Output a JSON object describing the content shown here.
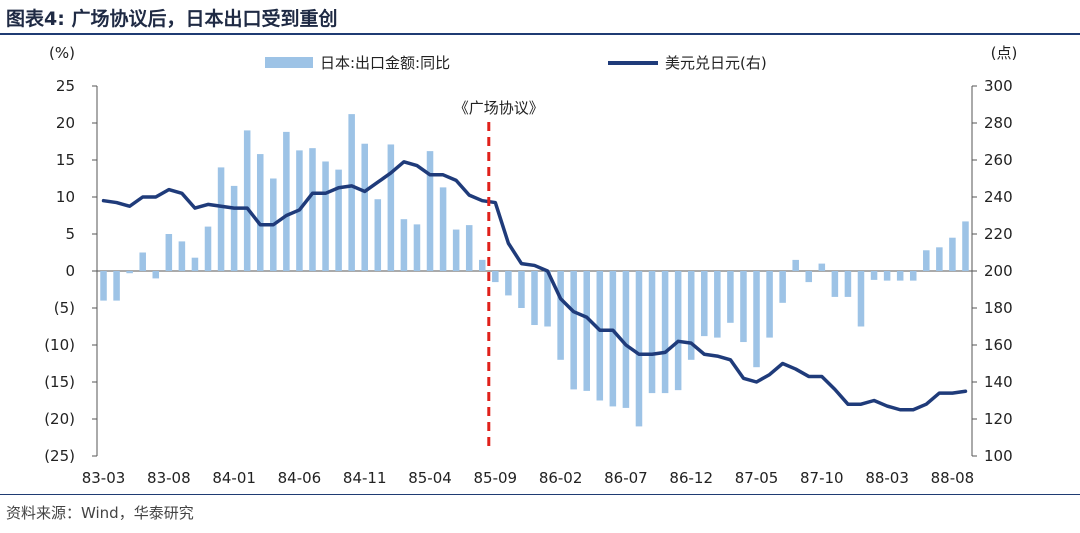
{
  "figure": {
    "label": "图表4:",
    "title": "广场协议后，日本出口受到重创",
    "source": "资料来源：Wind，华泰研究"
  },
  "chart_data": {
    "type": "bar+line",
    "left_unit": "(%)",
    "right_unit": "(点)",
    "left_axis": {
      "min": -25,
      "max": 25,
      "ticks": [
        25,
        20,
        15,
        10,
        5,
        0,
        -5,
        -10,
        -15,
        -20,
        -25
      ],
      "tick_labels": [
        "25",
        "20",
        "15",
        "10",
        "5",
        "0",
        "(5)",
        "(10)",
        "(15)",
        "(20)",
        "(25)"
      ]
    },
    "right_axis": {
      "min": 100,
      "max": 300,
      "ticks": [
        300,
        280,
        260,
        240,
        220,
        200,
        180,
        160,
        140,
        120,
        100
      ],
      "tick_labels": [
        "300",
        "280",
        "260",
        "240",
        "220",
        "200",
        "180",
        "160",
        "140",
        "120",
        "100"
      ]
    },
    "x_tick_labels": [
      "83-03",
      "83-08",
      "84-01",
      "84-06",
      "84-11",
      "85-04",
      "85-09",
      "86-02",
      "86-07",
      "86-12",
      "87-05",
      "87-10",
      "88-03",
      "88-08"
    ],
    "x_tick_start_index": 0,
    "x_tick_step": 5,
    "annotation": {
      "text": "《广场协议》",
      "at_index": 30
    },
    "grid": false,
    "legend_position": "top",
    "colors": {
      "bar": "#9dc3e6",
      "line": "#1f3b7a",
      "marker": "#e0211b"
    },
    "series": [
      {
        "name": "日本:出口金额:同比",
        "type": "bar",
        "axis": "left",
        "values": [
          -4.0,
          -4.0,
          -0.3,
          2.5,
          -1.0,
          5.0,
          4.0,
          1.8,
          6.0,
          14.0,
          11.5,
          19.0,
          15.8,
          12.5,
          18.8,
          16.3,
          16.6,
          14.8,
          13.7,
          21.2,
          17.2,
          9.7,
          17.1,
          7.0,
          6.3,
          16.2,
          11.3,
          5.6,
          6.2,
          1.5,
          -1.5,
          -3.3,
          -5.0,
          -7.3,
          -7.5,
          -12.0,
          -16.0,
          -16.2,
          -17.5,
          -18.3,
          -18.5,
          -21.0,
          -16.5,
          -16.5,
          -16.1,
          -12.0,
          -8.8,
          -9.0,
          -7.0,
          -9.6,
          -13.0,
          -9.0,
          -4.3,
          1.5,
          -1.5,
          1.0,
          -3.5,
          -3.5,
          -7.5,
          -1.2,
          -1.3,
          -1.3,
          -1.3,
          2.8,
          3.2,
          4.5,
          6.7
        ]
      },
      {
        "name": "美元兑日元(右)",
        "type": "line",
        "axis": "right",
        "values": [
          238,
          237,
          235,
          240,
          240,
          244,
          242,
          234,
          236,
          235,
          234,
          234,
          225,
          225,
          230,
          233,
          242,
          242,
          245,
          246,
          243,
          248,
          253,
          259,
          257,
          252,
          252,
          249,
          241,
          238,
          237,
          215,
          204,
          203,
          200,
          185,
          178,
          175,
          168,
          168,
          160,
          155,
          155,
          156,
          162,
          161,
          155,
          154,
          152,
          142,
          140,
          144,
          150,
          147,
          143,
          143,
          136,
          128,
          128,
          130,
          127,
          125,
          125,
          128,
          134,
          134,
          135
        ]
      }
    ]
  }
}
